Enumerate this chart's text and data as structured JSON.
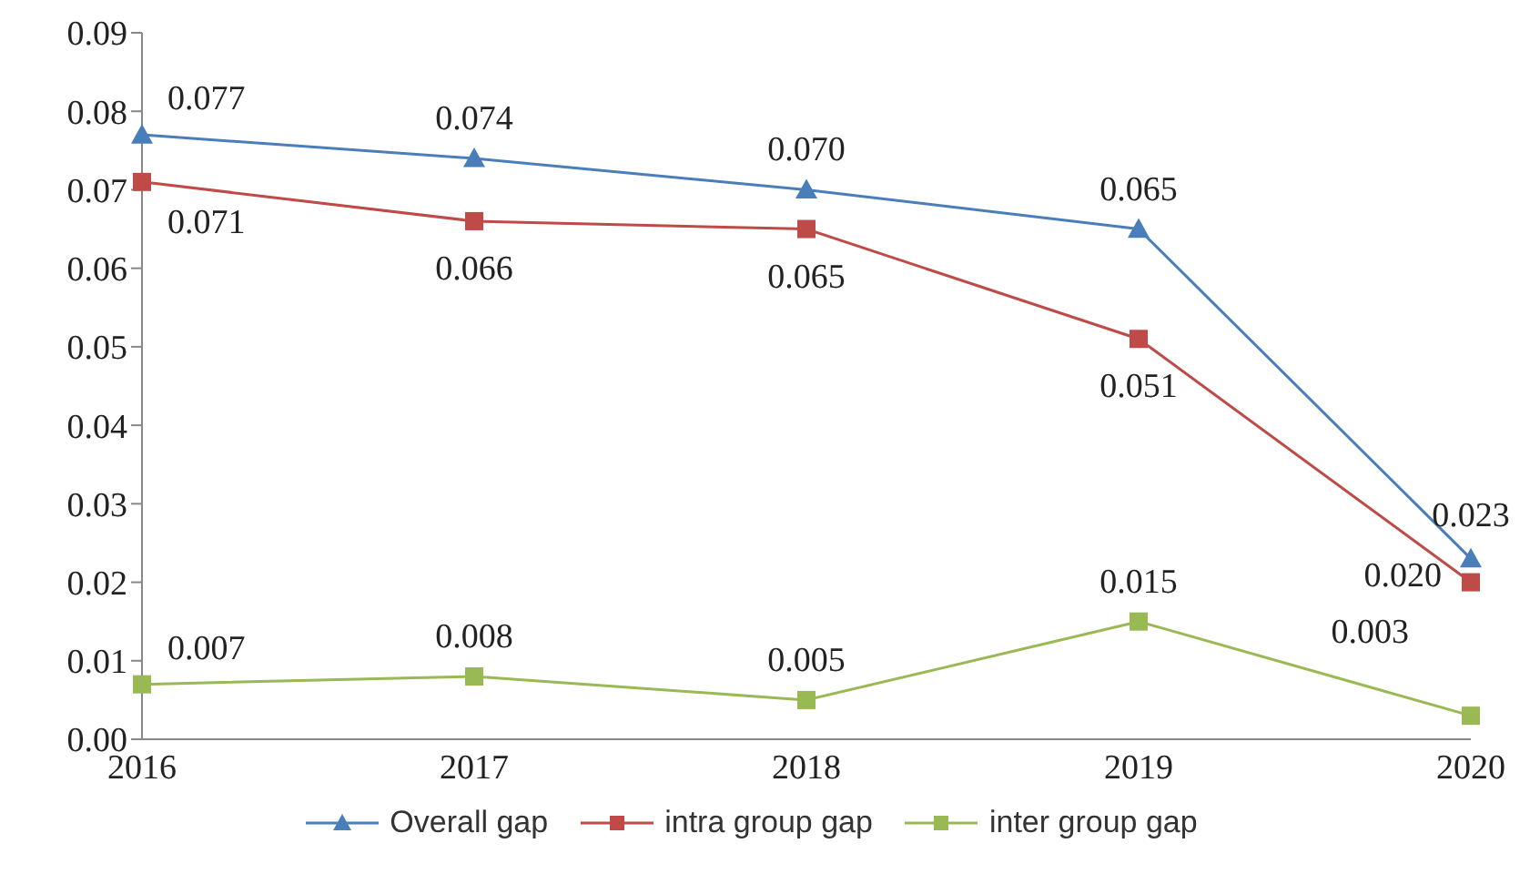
{
  "chart_data": {
    "type": "line",
    "categories": [
      "2016",
      "2017",
      "2018",
      "2019",
      "2020"
    ],
    "series": [
      {
        "name": "Overall gap",
        "color": "#4a7ebb",
        "marker": "triangle",
        "values": [
          0.077,
          0.074,
          0.07,
          0.065,
          0.023
        ],
        "value_labels": [
          "0.077",
          "0.074",
          "0.070",
          "0.065",
          "0.023"
        ]
      },
      {
        "name": "intra group gap",
        "color": "#be4b48",
        "marker": "square",
        "values": [
          0.071,
          0.066,
          0.065,
          0.051,
          0.02
        ],
        "value_labels": [
          "0.071",
          "0.066",
          "0.065",
          "0.051",
          "0.020"
        ]
      },
      {
        "name": "inter group gap",
        "color": "#98b954",
        "marker": "square",
        "values": [
          0.007,
          0.008,
          0.005,
          0.015,
          0.003
        ],
        "value_labels": [
          "0.007",
          "0.008",
          "0.005",
          "0.015",
          "0.003"
        ]
      }
    ],
    "ylim": [
      0,
      0.09
    ],
    "yticks": [
      {
        "value": 0,
        "label": "0.00"
      },
      {
        "value": 0.01,
        "label": "0.01"
      },
      {
        "value": 0.02,
        "label": "0.02"
      },
      {
        "value": 0.03,
        "label": "0.03"
      },
      {
        "value": 0.04,
        "label": "0.04"
      },
      {
        "value": 0.05,
        "label": "0.05"
      },
      {
        "value": 0.06,
        "label": "0.06"
      },
      {
        "value": 0.07,
        "label": "0.07"
      },
      {
        "value": 0.08,
        "label": "0.08"
      },
      {
        "value": 0.09,
        "label": "0.09"
      }
    ],
    "grid": false,
    "legend": "bottom",
    "line_style": "solid"
  }
}
